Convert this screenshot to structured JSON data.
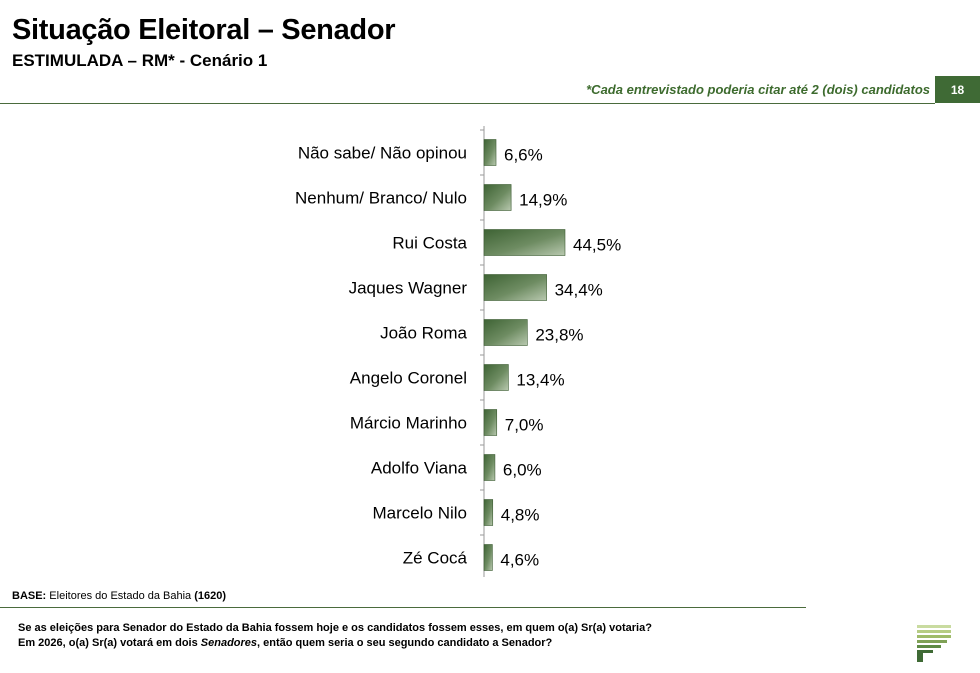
{
  "header": {
    "title": "Situação Eleitoral – Senador",
    "subtitle": "ESTIMULADA – RM* - Cenário 1",
    "note": "*Cada entrevistado poderia citar até 2 (dois) candidatos",
    "page_number": "18"
  },
  "chart_data": {
    "type": "bar",
    "orientation": "horizontal",
    "categories": [
      "Não sabe/ Não opinou",
      "Nenhum/ Branco/ Nulo",
      "Rui Costa",
      "Jaques Wagner",
      "João Roma",
      "Angelo Coronel",
      "Márcio Marinho",
      "Adolfo Viana",
      "Marcelo Nilo",
      "Zé Cocá"
    ],
    "values": [
      6.6,
      14.9,
      44.5,
      34.4,
      23.8,
      13.4,
      7.0,
      6.0,
      4.8,
      4.6
    ],
    "labels": [
      "6,6%",
      "14,9%",
      "44,5%",
      "34,4%",
      "23,8%",
      "13,4%",
      "7,0%",
      "6,0%",
      "4,8%",
      "4,6%"
    ],
    "title": "Situação Eleitoral – Senador",
    "xlabel": "",
    "ylabel": "",
    "xlim": [
      0,
      100
    ],
    "bar_color": "#4e7344"
  },
  "footer": {
    "base_label": "BASE:",
    "base_text": "Eleitores do Estado da Bahia",
    "base_count": "(1620)",
    "question_line1": "Se as eleições para Senador do Estado da Bahia fossem hoje e os candidatos fossem esses, em quem o(a) Sr(a) votaria?",
    "question_line2_a": "Em 2026, o(a) Sr(a) votará em dois ",
    "question_line2_em": "Senadores",
    "question_line2_b": ", então quem seria o seu segundo candidato a Senador?"
  }
}
